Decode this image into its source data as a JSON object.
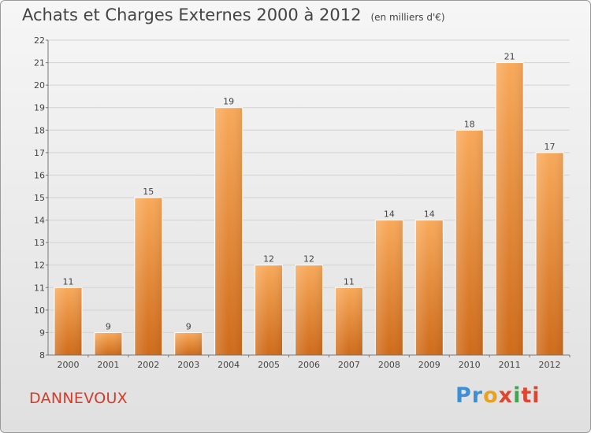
{
  "header": {
    "title": "Achats et Charges Externes 2000 à 2012",
    "unit": "(en milliers d'€)"
  },
  "footer": {
    "commune": "DANNEVOUX",
    "logo_parts": [
      "Pr",
      "o",
      "x",
      "i",
      "ti"
    ]
  },
  "colors": {
    "bar_top": "#f8a95a",
    "bar_bottom": "#cf6b1a",
    "commune": "#d43b2a"
  },
  "chart_data": {
    "type": "bar",
    "title": "Achats et Charges Externes 2000 à 2012",
    "subtitle": "(en milliers d'€)",
    "categories": [
      "2000",
      "2001",
      "2002",
      "2003",
      "2004",
      "2005",
      "2006",
      "2007",
      "2008",
      "2009",
      "2010",
      "2011",
      "2012"
    ],
    "values": [
      11,
      9,
      15,
      9,
      19,
      12,
      12,
      11,
      14,
      14,
      18,
      21,
      17
    ],
    "ylim": [
      8,
      22
    ],
    "yticks": [
      8,
      9,
      10,
      11,
      12,
      13,
      14,
      15,
      16,
      17,
      18,
      19,
      20,
      21,
      22
    ],
    "grid": true,
    "data_labels": true
  }
}
